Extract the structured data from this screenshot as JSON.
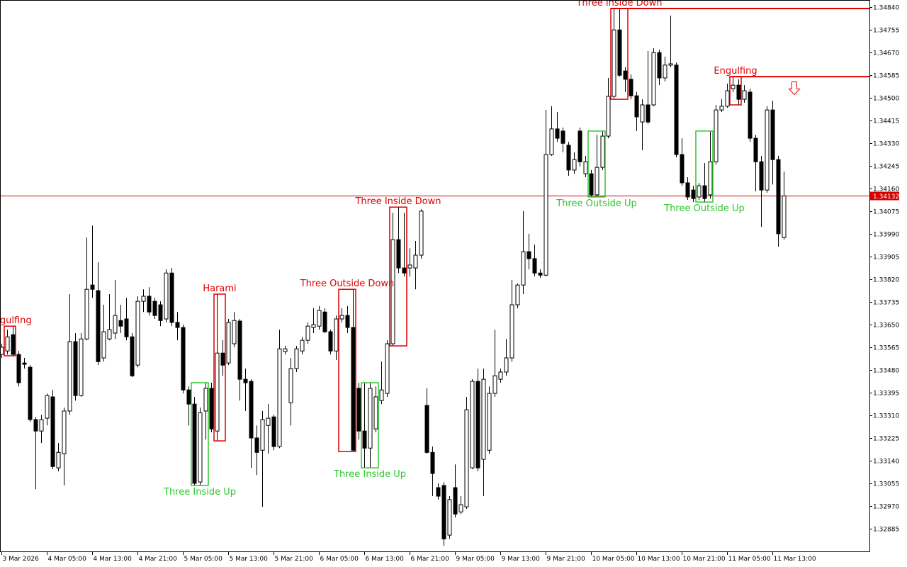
{
  "chart_data": {
    "type": "candlestick",
    "ylim": [
      1.328,
      1.34866
    ],
    "yticks": [
      {
        "value": 1.3484,
        "label": "1.34840"
      },
      1.34755,
      {
        "value": 1.3467,
        "label": "1.34670"
      },
      1.34585,
      {
        "value": 1.345,
        "label": "1.34500"
      },
      1.34415,
      {
        "value": 1.3433,
        "label": "1.34330"
      },
      1.34245,
      {
        "value": 1.3416,
        "label": "1.34160"
      },
      1.34075,
      {
        "value": 1.3399,
        "label": "1.33990"
      },
      1.33905,
      {
        "value": 1.3382,
        "label": "1.33820"
      },
      1.33735,
      {
        "value": 1.3365,
        "label": "1.33650"
      },
      1.33565,
      {
        "value": 1.3348,
        "label": "1.33480"
      },
      1.33395,
      {
        "value": 1.3331,
        "label": "1.33310"
      },
      1.33225,
      {
        "value": 1.3314,
        "label": "1.33140"
      },
      1.33055,
      {
        "value": 1.3297,
        "label": "1.32970"
      },
      1.32885
    ],
    "last_price": 1.34132,
    "last_price_color": "#d40000",
    "bull_color": "#ffffff",
    "bear_color": "#000000",
    "categories": [
      "3 Mar 2026",
      null,
      null,
      null,
      null,
      null,
      null,
      null,
      "4 Mar 05:00",
      null,
      null,
      null,
      null,
      null,
      null,
      null,
      "4 Mar 13:00",
      null,
      null,
      null,
      null,
      null,
      null,
      null,
      "4 Mar 21:00",
      null,
      null,
      null,
      null,
      null,
      null,
      null,
      "5 Mar 05:00",
      null,
      null,
      null,
      null,
      null,
      null,
      null,
      "5 Mar 13:00",
      null,
      null,
      null,
      null,
      null,
      null,
      null,
      "5 Mar 21:00",
      null,
      null,
      null,
      null,
      null,
      null,
      null,
      "6 Mar 05:00",
      null,
      null,
      null,
      null,
      null,
      null,
      null,
      "6 Mar 13:00",
      null,
      null,
      null,
      null,
      null,
      null,
      null,
      "6 Mar 21:00",
      null,
      null,
      null,
      null,
      null,
      null,
      null,
      "9 Mar 05:00",
      null,
      null,
      null,
      null,
      null,
      null,
      null,
      "9 Mar 13:00",
      null,
      null,
      null,
      null,
      null,
      null,
      null,
      "9 Mar 21:00",
      null,
      null,
      null,
      null,
      null,
      null,
      null,
      "10 Mar 05:00",
      null,
      null,
      null,
      null,
      null,
      null,
      null,
      "10 Mar 13:00",
      null,
      null,
      null,
      null,
      null,
      null,
      null,
      "10 Mar 21:00",
      null,
      null,
      null,
      null,
      null,
      null,
      null,
      "11 Mar 05:00",
      null,
      null,
      null,
      null,
      null,
      null,
      null,
      "11 Mar 13:00",
      null,
      null
    ],
    "ohlc": [
      [
        1.33538,
        1.33578,
        1.33525,
        1.33565
      ],
      [
        1.33551,
        1.33631,
        1.33538,
        1.33604
      ],
      [
        1.33612,
        1.33644,
        1.33533,
        1.33538
      ],
      [
        1.33538,
        1.33551,
        1.33418,
        1.33432
      ],
      [
        1.33506,
        1.33525,
        1.33485,
        1.33501
      ],
      [
        1.3349,
        1.33498,
        1.33286,
        1.33294
      ],
      [
        1.33294,
        1.33304,
        1.33033,
        1.33251
      ],
      [
        1.33251,
        1.33312,
        1.33206,
        1.33294
      ],
      [
        1.33299,
        1.33392,
        1.33272,
        1.33384
      ],
      [
        1.33379,
        1.33405,
        1.33108,
        1.33118
      ],
      [
        1.33113,
        1.33206,
        1.331,
        1.33171
      ],
      [
        1.33166,
        1.33339,
        1.33047,
        1.33326
      ],
      [
        1.33326,
        1.33764,
        1.33312,
        1.33586
      ],
      [
        1.33586,
        1.33618,
        1.33365,
        1.33384
      ],
      [
        1.33384,
        1.33618,
        1.33379,
        1.33596
      ],
      [
        1.33596,
        1.33976,
        1.33591,
        1.33782
      ],
      [
        1.33798,
        1.34021,
        1.3375,
        1.33782
      ],
      [
        1.33777,
        1.33883,
        1.33498,
        1.33511
      ],
      [
        1.33525,
        1.33724,
        1.33511,
        1.33623
      ],
      [
        1.33596,
        1.33764,
        1.33591,
        1.33631
      ],
      [
        1.33618,
        1.33817,
        1.33596,
        1.33684
      ],
      [
        1.33665,
        1.33724,
        1.33618,
        1.33644
      ],
      [
        1.33671,
        1.3375,
        1.33591,
        1.33604
      ],
      [
        1.33604,
        1.33618,
        1.33453,
        1.33458
      ],
      [
        1.33498,
        1.33756,
        1.3349,
        1.33737
      ],
      [
        1.33737,
        1.33782,
        1.33697,
        1.33756
      ],
      [
        1.33756,
        1.3379,
        1.33684,
        1.33697
      ],
      [
        1.33737,
        1.3375,
        1.33671,
        1.33684
      ],
      [
        1.33724,
        1.33737,
        1.33644,
        1.33665
      ],
      [
        1.33671,
        1.33857,
        1.33658,
        1.33843
      ],
      [
        1.33843,
        1.33862,
        1.33644,
        1.33658
      ],
      [
        1.33658,
        1.33697,
        1.33591,
        1.33639
      ],
      [
        1.33639,
        1.3365,
        1.33392,
        1.33405
      ],
      [
        1.33405,
        1.33418,
        1.33272,
        1.33352
      ],
      [
        1.33352,
        1.33379,
        1.33047,
        1.33055
      ],
      [
        1.3306,
        1.33339,
        1.33047,
        1.3332
      ],
      [
        1.33326,
        1.33432,
        1.33219,
        1.33411
      ],
      [
        1.33411,
        1.33432,
        1.33246,
        1.33259
      ],
      [
        1.33251,
        1.33764,
        1.33214,
        1.33543
      ],
      [
        1.33543,
        1.33591,
        1.33458,
        1.33498
      ],
      [
        1.33506,
        1.33671,
        1.33498,
        1.33658
      ],
      [
        1.33578,
        1.33697,
        1.33565,
        1.33665
      ],
      [
        1.33663,
        1.33671,
        1.33365,
        1.33445
      ],
      [
        1.33445,
        1.33485,
        1.33326,
        1.33432
      ],
      [
        1.33437,
        1.33445,
        1.33113,
        1.33225
      ],
      [
        1.33225,
        1.33272,
        1.33086,
        1.33171
      ],
      [
        1.33179,
        1.33326,
        1.32967,
        1.33294
      ],
      [
        1.33272,
        1.33352,
        1.33166,
        1.33299
      ],
      [
        1.33304,
        1.33312,
        1.33179,
        1.33193
      ],
      [
        1.33193,
        1.33631,
        1.33187,
        1.33559
      ],
      [
        1.33549,
        1.3357,
        1.33538,
        1.33559
      ],
      [
        1.33357,
        1.33525,
        1.33272,
        1.33485
      ],
      [
        1.33485,
        1.3357,
        1.33472,
        1.33559
      ],
      [
        1.33551,
        1.33604,
        1.33538,
        1.33591
      ],
      [
        1.33591,
        1.33658,
        1.33578,
        1.33644
      ],
      [
        1.33639,
        1.33711,
        1.33618,
        1.3365
      ],
      [
        1.33644,
        1.33719,
        1.33631,
        1.33703
      ],
      [
        1.33697,
        1.33711,
        1.33618,
        1.33623
      ],
      [
        1.33623,
        1.33631,
        1.33538,
        1.33551
      ],
      [
        1.33551,
        1.33684,
        1.33517,
        1.33671
      ],
      [
        1.33671,
        1.33711,
        1.33658,
        1.33684
      ],
      [
        1.33684,
        1.33719,
        1.33618,
        1.33639
      ],
      [
        1.33639,
        1.33782,
        1.33174,
        1.33179
      ],
      [
        1.33411,
        1.33432,
        1.33219,
        1.33251
      ],
      [
        1.33251,
        1.33432,
        1.33113,
        1.33187
      ],
      [
        1.33187,
        1.33432,
        1.33113,
        1.33411
      ],
      [
        1.33259,
        1.33418,
        1.33246,
        1.33379
      ],
      [
        1.33365,
        1.33511,
        1.33352,
        1.33405
      ],
      [
        1.33392,
        1.33591,
        1.33379,
        1.33578
      ],
      [
        1.33578,
        1.34069,
        1.3357,
        1.33968
      ],
      [
        1.33968,
        1.3409,
        1.33843,
        1.33862
      ],
      [
        1.33862,
        1.34069,
        1.3383,
        1.33843
      ],
      [
        1.33862,
        1.33936,
        1.3383,
        1.33873
      ],
      [
        1.33862,
        1.33963,
        1.33782,
        1.3391
      ],
      [
        1.3391,
        1.34082,
        1.33897,
        1.34075
      ],
      [
        1.33347,
        1.33411,
        1.33166,
        1.33171
      ],
      [
        1.33171,
        1.33193,
        1.33007,
        1.33092
      ],
      [
        1.33039,
        1.33055,
        1.32994,
        1.33007
      ],
      [
        1.33047,
        1.3306,
        1.32821,
        1.32847
      ],
      [
        1.32861,
        1.33007,
        1.32847,
        1.32994
      ],
      [
        1.33039,
        1.33126,
        1.32927,
        1.3294
      ],
      [
        1.32948,
        1.33007,
        1.3294,
        1.32975
      ],
      [
        1.32967,
        1.33379,
        1.32959,
        1.33331
      ],
      [
        1.33113,
        1.33445,
        1.33108,
        1.33437
      ],
      [
        1.33437,
        1.33485,
        1.331,
        1.33113
      ],
      [
        1.33145,
        1.33485,
        1.33007,
        1.33445
      ],
      [
        1.33179,
        1.33418,
        1.33166,
        1.33392
      ],
      [
        1.33392,
        1.33631,
        1.33379,
        1.33458
      ],
      [
        1.33445,
        1.33485,
        1.33432,
        1.33472
      ],
      [
        1.33472,
        1.33596,
        1.33458,
        1.33525
      ],
      [
        1.33525,
        1.33817,
        1.33511,
        1.33724
      ],
      [
        1.33724,
        1.33804,
        1.33711,
        1.33798
      ],
      [
        1.33798,
        1.34075,
        1.33764,
        1.33923
      ],
      [
        1.33923,
        1.3399,
        1.33857,
        1.33897
      ],
      [
        1.33897,
        1.3395,
        1.3383,
        1.33843
      ],
      [
        1.33843,
        1.33857,
        1.33825,
        1.33835
      ],
      [
        1.33835,
        1.34454,
        1.3383,
        1.34287
      ],
      [
        1.34287,
        1.34468,
        1.34282,
        1.34383
      ],
      [
        1.34383,
        1.34446,
        1.34335,
        1.34348
      ],
      [
        1.34375,
        1.34388,
        1.34295,
        1.34329
      ],
      [
        1.34322,
        1.34335,
        1.34207,
        1.34229
      ],
      [
        1.34229,
        1.34295,
        1.34215,
        1.34268
      ],
      [
        1.34375,
        1.34388,
        1.34242,
        1.3426
      ],
      [
        1.34215,
        1.34282,
        1.34202,
        1.3426
      ],
      [
        1.34215,
        1.34229,
        1.34128,
        1.34136
      ],
      [
        1.34136,
        1.34361,
        1.34128,
        1.34239
      ],
      [
        1.34239,
        1.34375,
        1.34229,
        1.34356
      ],
      [
        1.34356,
        1.34574,
        1.34348,
        1.34505
      ],
      [
        1.34505,
        1.34834,
        1.34494,
        1.34754
      ],
      [
        1.34754,
        1.34834,
        1.34579,
        1.34584
      ],
      [
        1.346,
        1.34614,
        1.34521,
        1.34569
      ],
      [
        1.34569,
        1.34587,
        1.34494,
        1.34507
      ],
      [
        1.34507,
        1.34521,
        1.34375,
        1.34428
      ],
      [
        1.34409,
        1.34494,
        1.34303,
        1.34473
      ],
      [
        1.34473,
        1.34675,
        1.34401,
        1.34409
      ],
      [
        1.34473,
        1.34685,
        1.34468,
        1.34669
      ],
      [
        1.34669,
        1.3468,
        1.34547,
        1.34574
      ],
      [
        1.34574,
        1.34654,
        1.34561,
        1.34622
      ],
      [
        1.34622,
        1.34808,
        1.34614,
        1.34627
      ],
      [
        1.34622,
        1.34632,
        1.34276,
        1.34287
      ],
      [
        1.34287,
        1.34348,
        1.3417,
        1.34181
      ],
      [
        1.34181,
        1.34202,
        1.34117,
        1.34128
      ],
      [
        1.34154,
        1.3417,
        1.34109,
        1.34122
      ],
      [
        1.34128,
        1.34181,
        1.34117,
        1.3417
      ],
      [
        1.3417,
        1.34255,
        1.34109,
        1.34122
      ],
      [
        1.34136,
        1.34375,
        1.34122,
        1.3426
      ],
      [
        1.3426,
        1.34473,
        1.3425,
        1.34454
      ],
      [
        1.34454,
        1.34494,
        1.34446,
        1.34468
      ],
      [
        1.34468,
        1.34553,
        1.34462,
        1.34526
      ],
      [
        1.34534,
        1.34579,
        1.34521,
        1.34547
      ],
      [
        1.34547,
        1.34569,
        1.34473,
        1.34494
      ],
      [
        1.34494,
        1.34547,
        1.34481,
        1.34526
      ],
      [
        1.34521,
        1.34534,
        1.34335,
        1.34348
      ],
      [
        1.34348,
        1.34361,
        1.34149,
        1.3426
      ],
      [
        1.3426,
        1.34282,
        1.34016,
        1.34154
      ],
      [
        1.34154,
        1.34468,
        1.34144,
        1.34454
      ],
      [
        1.34454,
        1.34489,
        1.34175,
        1.34268
      ],
      [
        1.34268,
        1.34282,
        1.33942,
        1.3399
      ],
      [
        1.33976,
        1.34223,
        1.33968,
        1.34132
      ]
    ],
    "patterns": [
      {
        "name": "Engulfing",
        "from": 1,
        "to": 2,
        "color": "#e00000",
        "direction": "down"
      },
      {
        "name": "Three Inside Up",
        "from": 34,
        "to": 36,
        "color": "#2ec72e",
        "direction": "up"
      },
      {
        "name": "Harami",
        "from": 38,
        "to": 39,
        "color": "#e00000",
        "direction": "down"
      },
      {
        "name": "Three Outside Down",
        "from": 60,
        "to": 62,
        "color": "#e00000",
        "direction": "down"
      },
      {
        "name": "Three Inside Up",
        "from": 64,
        "to": 66,
        "color": "#2ec72e",
        "direction": "up"
      },
      {
        "name": "Three Inside Down",
        "from": 69,
        "to": 71,
        "color": "#e00000",
        "direction": "down"
      },
      {
        "name": "Three Outside Up",
        "from": 104,
        "to": 106,
        "color": "#2ec72e",
        "direction": "up"
      },
      {
        "name": "Three Inside Down",
        "from": 108,
        "to": 110,
        "color": "#e00000",
        "direction": "down",
        "level_line": true
      },
      {
        "name": "Three Outside Up",
        "from": 123,
        "to": 125,
        "color": "#2ec72e",
        "direction": "up"
      },
      {
        "name": "Engulfing",
        "from": 129,
        "to": 130,
        "color": "#e00000",
        "direction": "down",
        "level_line": true
      }
    ]
  }
}
